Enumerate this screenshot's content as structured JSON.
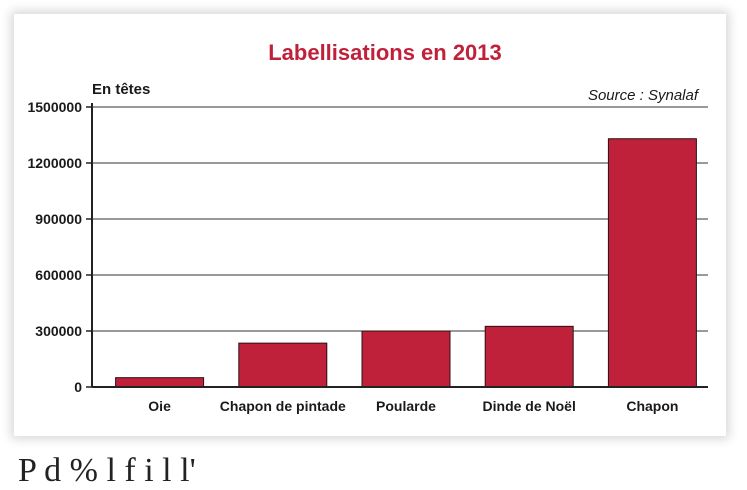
{
  "chart_data": {
    "type": "bar",
    "title": "Labellisations en 2013",
    "ylabel": "En têtes",
    "source": "Source : Synalaf",
    "categories": [
      "Oie",
      "Chapon de pintade",
      "Poularde",
      "Dinde de Noël",
      "Chapon"
    ],
    "values": [
      50000,
      235000,
      300000,
      325000,
      1330000
    ],
    "yticks": [
      0,
      300000,
      600000,
      900000,
      1200000,
      1500000
    ],
    "ylim": [
      0,
      1500000
    ],
    "grid": true,
    "bar_color": "#c0213a",
    "title_color": "#c0213a"
  },
  "footer_text": "P       d    %      l     f            i l l'"
}
